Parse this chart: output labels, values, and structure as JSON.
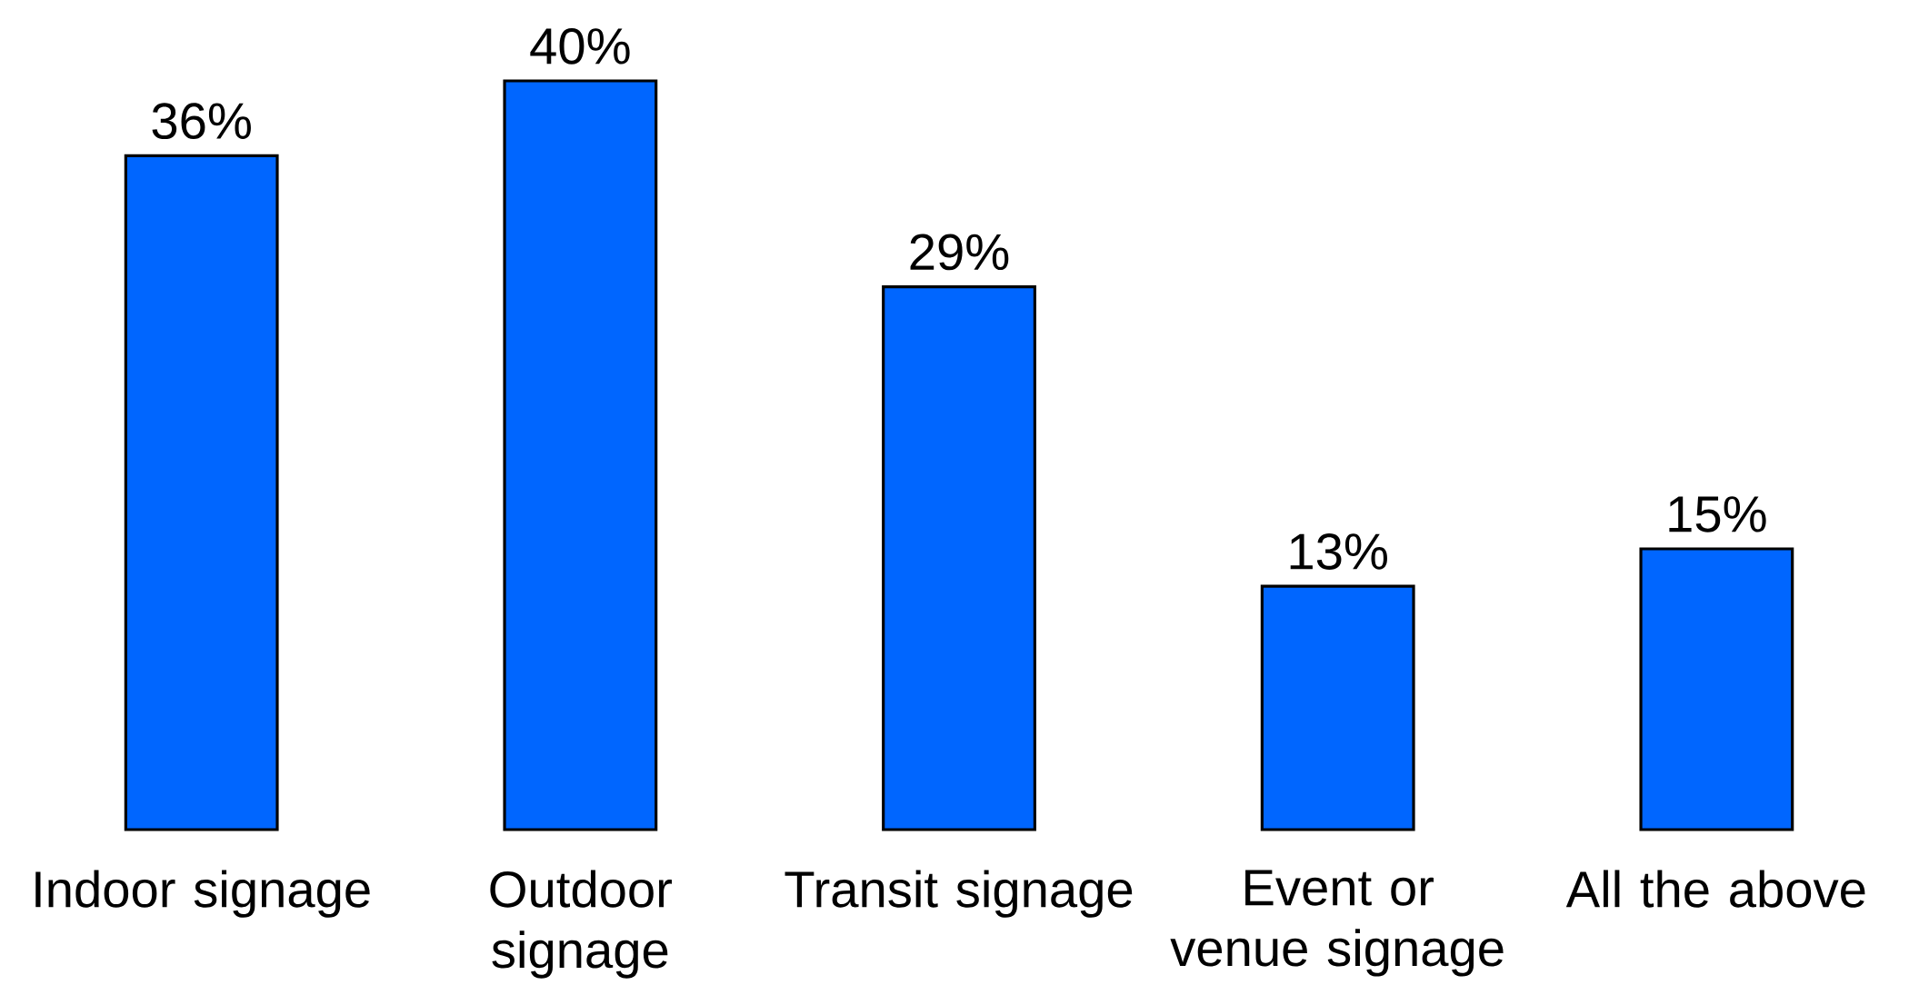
{
  "chart_data": {
    "type": "bar",
    "categories": [
      "Indoor signage",
      "Outdoor signage",
      "Transit signage",
      "Event or venue signage",
      "All the above"
    ],
    "values": [
      36,
      40,
      29,
      13,
      15
    ],
    "value_labels": [
      "36%",
      "40%",
      "29%",
      "13%",
      "15%"
    ],
    "color": "#0066ff"
  }
}
